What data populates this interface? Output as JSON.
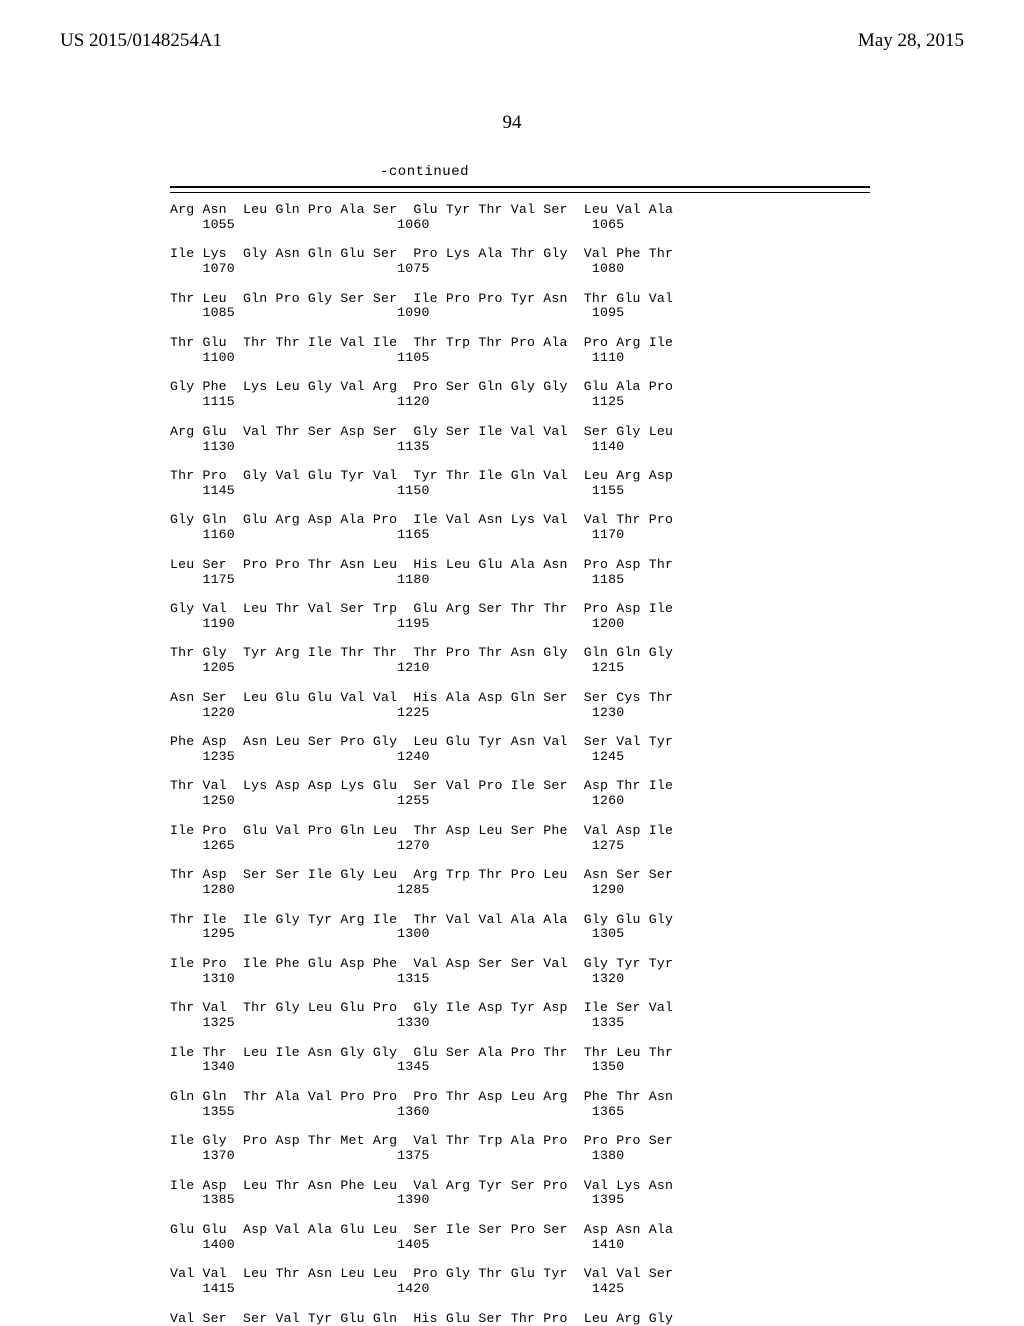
{
  "header": {
    "pubnum": "US 2015/0148254A1",
    "pubdate": "May 28, 2015"
  },
  "pagenum": "94",
  "continued": "-continued",
  "rows": [
    {
      "aa": "Arg Asn  Leu Gln Pro Ala Ser  Glu Tyr Thr Val Ser  Leu Val Ala",
      "num": "    1055                    1060                    1065"
    },
    {
      "aa": "Ile Lys  Gly Asn Gln Glu Ser  Pro Lys Ala Thr Gly  Val Phe Thr",
      "num": "    1070                    1075                    1080"
    },
    {
      "aa": "Thr Leu  Gln Pro Gly Ser Ser  Ile Pro Pro Tyr Asn  Thr Glu Val",
      "num": "    1085                    1090                    1095"
    },
    {
      "aa": "Thr Glu  Thr Thr Ile Val Ile  Thr Trp Thr Pro Ala  Pro Arg Ile",
      "num": "    1100                    1105                    1110"
    },
    {
      "aa": "Gly Phe  Lys Leu Gly Val Arg  Pro Ser Gln Gly Gly  Glu Ala Pro",
      "num": "    1115                    1120                    1125"
    },
    {
      "aa": "Arg Glu  Val Thr Ser Asp Ser  Gly Ser Ile Val Val  Ser Gly Leu",
      "num": "    1130                    1135                    1140"
    },
    {
      "aa": "Thr Pro  Gly Val Glu Tyr Val  Tyr Thr Ile Gln Val  Leu Arg Asp",
      "num": "    1145                    1150                    1155"
    },
    {
      "aa": "Gly Gln  Glu Arg Asp Ala Pro  Ile Val Asn Lys Val  Val Thr Pro",
      "num": "    1160                    1165                    1170"
    },
    {
      "aa": "Leu Ser  Pro Pro Thr Asn Leu  His Leu Glu Ala Asn  Pro Asp Thr",
      "num": "    1175                    1180                    1185"
    },
    {
      "aa": "Gly Val  Leu Thr Val Ser Trp  Glu Arg Ser Thr Thr  Pro Asp Ile",
      "num": "    1190                    1195                    1200"
    },
    {
      "aa": "Thr Gly  Tyr Arg Ile Thr Thr  Thr Pro Thr Asn Gly  Gln Gln Gly",
      "num": "    1205                    1210                    1215"
    },
    {
      "aa": "Asn Ser  Leu Glu Glu Val Val  His Ala Asp Gln Ser  Ser Cys Thr",
      "num": "    1220                    1225                    1230"
    },
    {
      "aa": "Phe Asp  Asn Leu Ser Pro Gly  Leu Glu Tyr Asn Val  Ser Val Tyr",
      "num": "    1235                    1240                    1245"
    },
    {
      "aa": "Thr Val  Lys Asp Asp Lys Glu  Ser Val Pro Ile Ser  Asp Thr Ile",
      "num": "    1250                    1255                    1260"
    },
    {
      "aa": "Ile Pro  Glu Val Pro Gln Leu  Thr Asp Leu Ser Phe  Val Asp Ile",
      "num": "    1265                    1270                    1275"
    },
    {
      "aa": "Thr Asp  Ser Ser Ile Gly Leu  Arg Trp Thr Pro Leu  Asn Ser Ser",
      "num": "    1280                    1285                    1290"
    },
    {
      "aa": "Thr Ile  Ile Gly Tyr Arg Ile  Thr Val Val Ala Ala  Gly Glu Gly",
      "num": "    1295                    1300                    1305"
    },
    {
      "aa": "Ile Pro  Ile Phe Glu Asp Phe  Val Asp Ser Ser Val  Gly Tyr Tyr",
      "num": "    1310                    1315                    1320"
    },
    {
      "aa": "Thr Val  Thr Gly Leu Glu Pro  Gly Ile Asp Tyr Asp  Ile Ser Val",
      "num": "    1325                    1330                    1335"
    },
    {
      "aa": "Ile Thr  Leu Ile Asn Gly Gly  Glu Ser Ala Pro Thr  Thr Leu Thr",
      "num": "    1340                    1345                    1350"
    },
    {
      "aa": "Gln Gln  Thr Ala Val Pro Pro  Pro Thr Asp Leu Arg  Phe Thr Asn",
      "num": "    1355                    1360                    1365"
    },
    {
      "aa": "Ile Gly  Pro Asp Thr Met Arg  Val Thr Trp Ala Pro  Pro Pro Ser",
      "num": "    1370                    1375                    1380"
    },
    {
      "aa": "Ile Asp  Leu Thr Asn Phe Leu  Val Arg Tyr Ser Pro  Val Lys Asn",
      "num": "    1385                    1390                    1395"
    },
    {
      "aa": "Glu Glu  Asp Val Ala Glu Leu  Ser Ile Ser Pro Ser  Asp Asn Ala",
      "num": "    1400                    1405                    1410"
    },
    {
      "aa": "Val Val  Leu Thr Asn Leu Leu  Pro Gly Thr Glu Tyr  Val Val Ser",
      "num": "    1415                    1420                    1425"
    },
    {
      "aa": "Val Ser  Ser Val Tyr Glu Gln  His Glu Ser Thr Pro  Leu Arg Gly",
      "num": ""
    }
  ]
}
